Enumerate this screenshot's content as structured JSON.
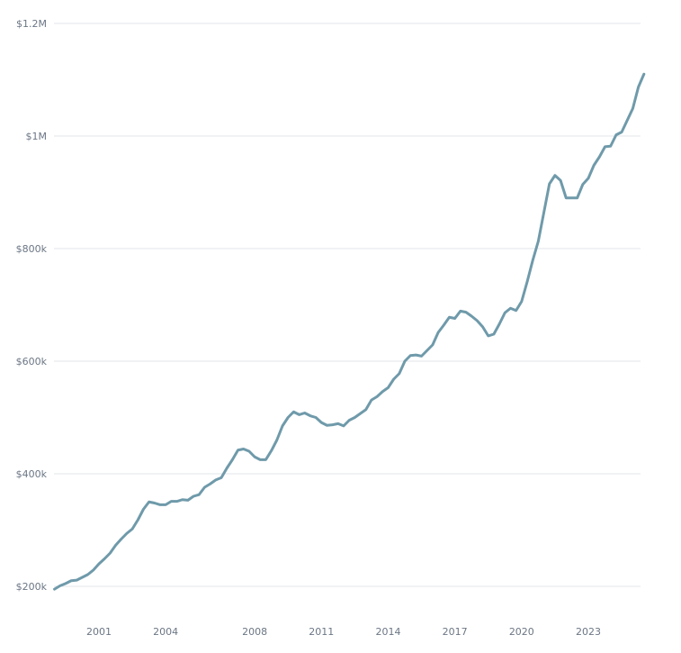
{
  "chart_data": {
    "type": "line",
    "title": "",
    "xlabel": "",
    "ylabel": "",
    "xlim": [
      1999.0,
      2024.75
    ],
    "ylim": [
      200000,
      1200000
    ],
    "grid": true,
    "x_ticks": [
      {
        "value": 2001,
        "label": "2001"
      },
      {
        "value": 2004,
        "label": "2004"
      },
      {
        "value": 2008,
        "label": "2008"
      },
      {
        "value": 2011,
        "label": "2011"
      },
      {
        "value": 2014,
        "label": "2014"
      },
      {
        "value": 2017,
        "label": "2017"
      },
      {
        "value": 2020,
        "label": "2020"
      },
      {
        "value": 2023,
        "label": "2023"
      }
    ],
    "y_ticks": [
      {
        "value": 200000,
        "label": "$200k"
      },
      {
        "value": 400000,
        "label": "$400k"
      },
      {
        "value": 600000,
        "label": "$600k"
      },
      {
        "value": 800000,
        "label": "$800k"
      },
      {
        "value": 1000000,
        "label": "$1M"
      },
      {
        "value": 1200000,
        "label": "$1.2M"
      }
    ],
    "series": [
      {
        "color": "#6f9aaa",
        "points": [
          [
            1999.0,
            195000
          ],
          [
            1999.25,
            201000
          ],
          [
            1999.5,
            205000
          ],
          [
            1999.75,
            210000
          ],
          [
            2000.0,
            211000
          ],
          [
            2000.25,
            216000
          ],
          [
            2000.5,
            221000
          ],
          [
            2000.75,
            229000
          ],
          [
            2001.0,
            240000
          ],
          [
            2001.25,
            249000
          ],
          [
            2001.5,
            259000
          ],
          [
            2001.75,
            273000
          ],
          [
            2002.0,
            284000
          ],
          [
            2002.25,
            294000
          ],
          [
            2002.5,
            302000
          ],
          [
            2002.75,
            318000
          ],
          [
            2003.0,
            337000
          ],
          [
            2003.25,
            350000
          ],
          [
            2003.5,
            348000
          ],
          [
            2003.75,
            345000
          ],
          [
            2004.0,
            345000
          ],
          [
            2004.25,
            351000
          ],
          [
            2004.5,
            351000
          ],
          [
            2004.75,
            354000
          ],
          [
            2005.0,
            353000
          ],
          [
            2005.25,
            360000
          ],
          [
            2005.5,
            363000
          ],
          [
            2005.75,
            376000
          ],
          [
            2006.0,
            382000
          ],
          [
            2006.25,
            389000
          ],
          [
            2006.5,
            393000
          ],
          [
            2006.75,
            410000
          ],
          [
            2007.0,
            425000
          ],
          [
            2007.25,
            442000
          ],
          [
            2007.5,
            444000
          ],
          [
            2007.75,
            440000
          ],
          [
            2008.0,
            430000
          ],
          [
            2008.25,
            425000
          ],
          [
            2008.5,
            425000
          ],
          [
            2008.75,
            441000
          ],
          [
            2009.0,
            460000
          ],
          [
            2009.25,
            485000
          ],
          [
            2009.5,
            500000
          ],
          [
            2009.75,
            510000
          ],
          [
            2010.0,
            505000
          ],
          [
            2010.25,
            508000
          ],
          [
            2010.5,
            503000
          ],
          [
            2010.75,
            500000
          ],
          [
            2011.0,
            491000
          ],
          [
            2011.25,
            486000
          ],
          [
            2011.5,
            487000
          ],
          [
            2011.75,
            489000
          ],
          [
            2012.0,
            485000
          ],
          [
            2012.25,
            495000
          ],
          [
            2012.5,
            500000
          ],
          [
            2012.75,
            507000
          ],
          [
            2013.0,
            514000
          ],
          [
            2013.25,
            531000
          ],
          [
            2013.5,
            537000
          ],
          [
            2013.75,
            546000
          ],
          [
            2014.0,
            553000
          ],
          [
            2014.25,
            568000
          ],
          [
            2014.5,
            578000
          ],
          [
            2014.75,
            600000
          ],
          [
            2015.0,
            610000
          ],
          [
            2015.25,
            611000
          ],
          [
            2015.5,
            609000
          ],
          [
            2015.75,
            619000
          ],
          [
            2016.0,
            629000
          ],
          [
            2016.25,
            651000
          ],
          [
            2016.5,
            664000
          ],
          [
            2016.75,
            678000
          ],
          [
            2017.0,
            676000
          ],
          [
            2017.25,
            689000
          ],
          [
            2017.5,
            687000
          ],
          [
            2017.75,
            680000
          ],
          [
            2018.0,
            672000
          ],
          [
            2018.25,
            661000
          ],
          [
            2018.5,
            645000
          ],
          [
            2018.75,
            648000
          ],
          [
            2019.0,
            666000
          ],
          [
            2019.25,
            686000
          ],
          [
            2019.5,
            694000
          ],
          [
            2019.75,
            690000
          ],
          [
            2020.0,
            706000
          ],
          [
            2020.25,
            741000
          ],
          [
            2020.5,
            779000
          ],
          [
            2020.75,
            813000
          ],
          [
            2021.0,
            864000
          ],
          [
            2021.25,
            915000
          ],
          [
            2021.5,
            930000
          ],
          [
            2021.75,
            921000
          ],
          [
            2022.0,
            890000
          ],
          [
            2022.25,
            890000
          ],
          [
            2022.5,
            890000
          ],
          [
            2022.75,
            914000
          ],
          [
            2023.0,
            925000
          ],
          [
            2023.25,
            948000
          ],
          [
            2023.5,
            963000
          ],
          [
            2023.75,
            981000
          ],
          [
            2024.0,
            982000
          ],
          [
            2024.25,
            1002000
          ],
          [
            2024.5,
            1007000
          ],
          [
            2024.75,
            1028000
          ],
          [
            2025.0,
            1049000
          ],
          [
            2025.25,
            1087000
          ],
          [
            2025.5,
            1110000
          ]
        ]
      }
    ]
  }
}
